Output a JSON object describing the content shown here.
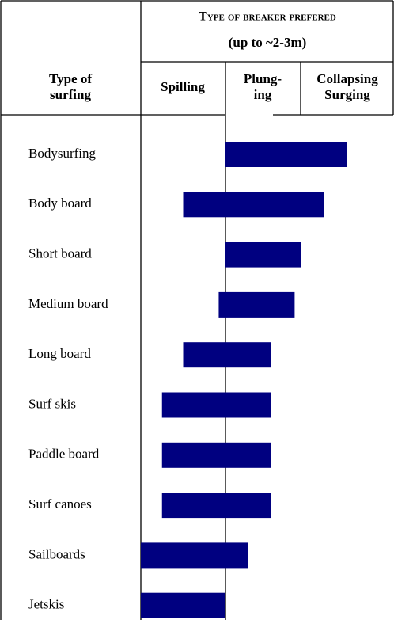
{
  "header": {
    "title": "Type of breaker prefered",
    "subtitle": "(up to ~2-3m)"
  },
  "columns": [
    {
      "lines": [
        "Type of",
        "surfing"
      ]
    },
    {
      "lines": [
        "Spilling"
      ]
    },
    {
      "lines": [
        "Plung-",
        "ing"
      ]
    },
    {
      "lines": [
        "Collapsing",
        "Surging"
      ]
    }
  ],
  "bar_color": "#000080",
  "rows": [
    {
      "label": "Bodysurfing",
      "range": [
        1,
        2.5
      ]
    },
    {
      "label": "Body board",
      "range": [
        0.5,
        2.25
      ]
    },
    {
      "label": "Short board",
      "range": [
        1,
        2
      ]
    },
    {
      "label": "Medium board",
      "range": [
        0.92,
        1.92
      ]
    },
    {
      "label": "Long board",
      "range": [
        0.5,
        1.6
      ]
    },
    {
      "label": "Surf skis",
      "range": [
        0.25,
        1.6
      ]
    },
    {
      "label": "Paddle board",
      "range": [
        0.25,
        1.6
      ]
    },
    {
      "label": "Surf canoes",
      "range": [
        0.25,
        1.6
      ]
    },
    {
      "label": "Sailboards",
      "range": [
        0,
        1.3
      ]
    },
    {
      "label": "Jetskis",
      "range": [
        0,
        1
      ]
    }
  ]
}
